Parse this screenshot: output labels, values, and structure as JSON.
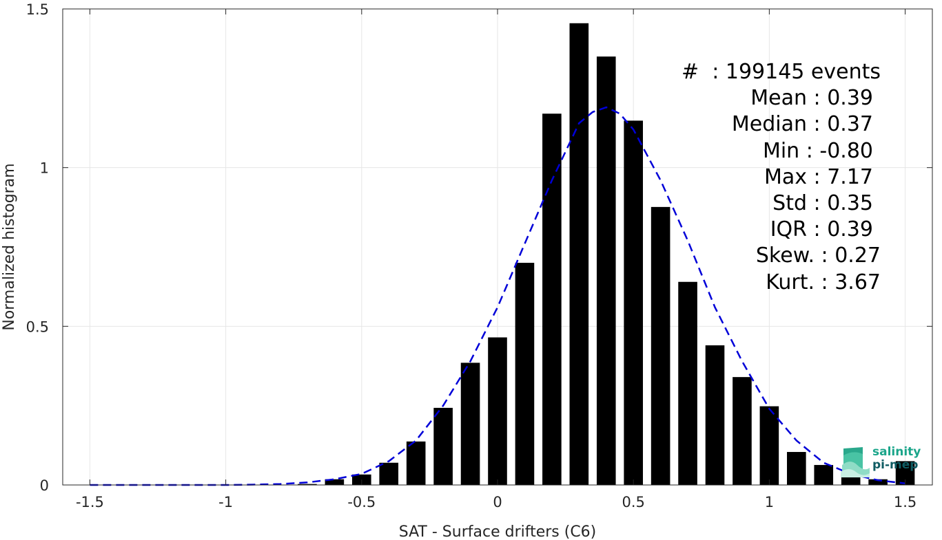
{
  "chart_data": {
    "type": "bar",
    "xlabel": "SAT - Surface drifters (C6)",
    "ylabel": "Normalized histogram",
    "xlim": [
      -1.6,
      1.6
    ],
    "ylim": [
      0,
      1.5
    ],
    "xticks": [
      -1.5,
      -1,
      -0.5,
      0,
      0.5,
      1,
      1.5
    ],
    "xtick_labels": [
      "-1.5",
      "-1",
      "-0.5",
      "0",
      "0.5",
      "1",
      "1.5"
    ],
    "yticks": [
      0,
      0.5,
      1,
      1.5
    ],
    "ytick_labels": [
      "0",
      "0.5",
      "1",
      "1.5"
    ],
    "grid": true,
    "bar_width": 0.07,
    "bars": {
      "x": [
        -1.5,
        -1.4,
        -1.3,
        -1.2,
        -1.1,
        -1.0,
        -0.9,
        -0.8,
        -0.7,
        -0.6,
        -0.5,
        -0.4,
        -0.3,
        -0.2,
        -0.1,
        0.0,
        0.1,
        0.2,
        0.3,
        0.4,
        0.5,
        0.6,
        0.7,
        0.8,
        0.9,
        1.0,
        1.1,
        1.2,
        1.3,
        1.4,
        1.5
      ],
      "values": [
        0,
        0,
        0,
        0,
        0,
        0,
        0,
        0,
        0.003,
        0.018,
        0.033,
        0.07,
        0.137,
        0.243,
        0.385,
        0.465,
        0.7,
        1.17,
        1.455,
        1.35,
        1.148,
        0.876,
        0.64,
        0.44,
        0.34,
        0.248,
        0.104,
        0.063,
        0.033,
        0.018,
        0.075
      ],
      "color": "#000000"
    },
    "fit_curve": {
      "style": "dashed",
      "color": "#0000d8",
      "x": [
        -1.5,
        -1.4,
        -1.3,
        -1.2,
        -1.1,
        -1.0,
        -0.9,
        -0.8,
        -0.7,
        -0.6,
        -0.5,
        -0.4,
        -0.3,
        -0.2,
        -0.1,
        0.0,
        0.1,
        0.2,
        0.3,
        0.35,
        0.4,
        0.45,
        0.5,
        0.6,
        0.7,
        0.8,
        0.9,
        1.0,
        1.1,
        1.2,
        1.3,
        1.4,
        1.5
      ],
      "y": [
        0,
        0,
        0,
        0,
        0,
        0,
        0.001,
        0.003,
        0.008,
        0.018,
        0.035,
        0.075,
        0.14,
        0.25,
        0.39,
        0.56,
        0.76,
        0.96,
        1.14,
        1.175,
        1.19,
        1.17,
        1.12,
        0.96,
        0.77,
        0.56,
        0.39,
        0.24,
        0.14,
        0.07,
        0.035,
        0.015,
        0.005
      ]
    },
    "stats": [
      "#  : 199145 events",
      "Mean : 0.39",
      "Median : 0.37",
      "Min : -0.80",
      "Max : 7.17",
      "Std : 0.35",
      "IQR : 0.39",
      "Skew. : 0.27",
      "Kurt. : 3.67"
    ]
  },
  "logo": {
    "line1": "salinity",
    "line2": "pi-mep",
    "color1": "#1aa58a",
    "color2": "#0f5c63"
  }
}
